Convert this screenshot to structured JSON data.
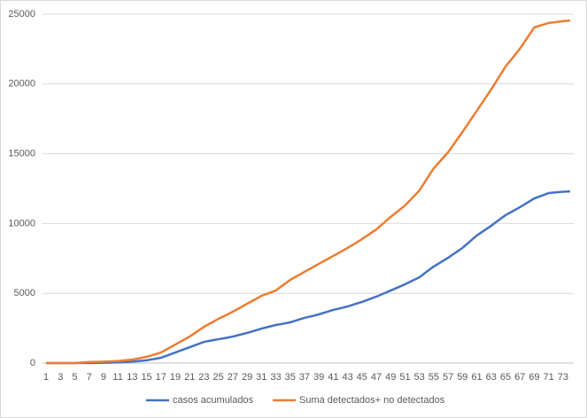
{
  "chart_data": {
    "type": "line",
    "categories": [
      1,
      null,
      3,
      null,
      5,
      null,
      7,
      null,
      9,
      null,
      11,
      null,
      13,
      null,
      15,
      null,
      17,
      null,
      19,
      null,
      21,
      null,
      23,
      null,
      25,
      null,
      27,
      null,
      29,
      null,
      31,
      null,
      33,
      null,
      35,
      null,
      37,
      null,
      39,
      null,
      41,
      null,
      43,
      null,
      45,
      null,
      47,
      null,
      49,
      null,
      51,
      null,
      53,
      null,
      55,
      null,
      57,
      null,
      59,
      null,
      61,
      null,
      63,
      null,
      65,
      null,
      67,
      null,
      69,
      null,
      71,
      null,
      73,
      null
    ],
    "series": [
      {
        "name": "casos acumulados",
        "color": "#4472c4",
        "values": [
          0,
          0,
          0,
          0,
          0,
          5,
          10,
          15,
          20,
          35,
          50,
          75,
          100,
          150,
          200,
          290,
          380,
          570,
          760,
          950,
          1140,
          1330,
          1520,
          1620,
          1710,
          1800,
          1900,
          2030,
          2160,
          2310,
          2470,
          2600,
          2730,
          2820,
          2920,
          3080,
          3240,
          3360,
          3490,
          3650,
          3810,
          3930,
          4060,
          4220,
          4380,
          4570,
          4760,
          4980,
          5200,
          5420,
          5650,
          5900,
          6150,
          6540,
          6920,
          7230,
          7550,
          7900,
          8250,
          8700,
          9140,
          9490,
          9840,
          10220,
          10600,
          10880,
          11170,
          11480,
          11800,
          11990,
          12180,
          12230,
          12280,
          12300
        ]
      },
      {
        "name": "Suma detectados+ no detectados",
        "color": "#ed7d31",
        "values": [
          0,
          0,
          0,
          0,
          0,
          40,
          80,
          90,
          100,
          125,
          150,
          200,
          250,
          350,
          450,
          600,
          760,
          1040,
          1330,
          1610,
          1900,
          2250,
          2600,
          2880,
          3170,
          3420,
          3680,
          3960,
          4250,
          4530,
          4820,
          5010,
          5200,
          5580,
          5960,
          6250,
          6540,
          6820,
          7110,
          7390,
          7680,
          7960,
          8250,
          8560,
          8880,
          9230,
          9580,
          10020,
          10470,
          10880,
          11290,
          11830,
          12370,
          13160,
          13960,
          14530,
          15100,
          15830,
          16560,
          17320,
          18080,
          18840,
          19600,
          20420,
          21250,
          21880,
          22520,
          23280,
          24050,
          24210,
          24370,
          24430,
          24500,
          24550
        ]
      }
    ],
    "ylim": [
      0,
      25000
    ],
    "yticks": [
      0,
      5000,
      10000,
      15000,
      20000,
      25000
    ],
    "grid": true,
    "legend": "bottom"
  }
}
